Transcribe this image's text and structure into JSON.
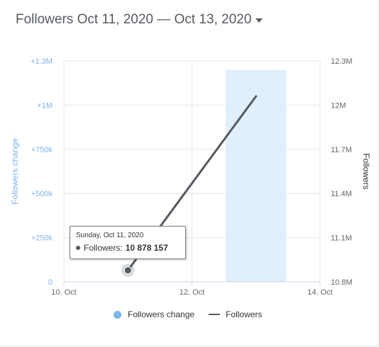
{
  "header": {
    "title": "Followers Oct 11, 2020 — Oct 13, 2020"
  },
  "chart_data": {
    "type": "line",
    "title": "Followers Oct 11, 2020 — Oct 13, 2020",
    "x_ticks": [
      "10. Oct",
      "12. Oct",
      "14. Oct"
    ],
    "x_values": [
      "2020-10-10",
      "2020-10-12",
      "2020-10-14"
    ],
    "y_left": {
      "label": "Followers change",
      "ticks": [
        "0",
        "+250k",
        "+500k",
        "+750k",
        "+1M",
        "+1.3M"
      ],
      "tick_values": [
        0,
        250000,
        500000,
        750000,
        1000000,
        1250000
      ],
      "range": [
        0,
        1250000
      ]
    },
    "y_right": {
      "label": "Followers",
      "ticks": [
        "10.8M",
        "11.1M",
        "11.4M",
        "11.7M",
        "12M",
        "12.3M"
      ],
      "tick_values": [
        10800000,
        11100000,
        11400000,
        11700000,
        12000000,
        12300000
      ],
      "range": [
        10800000,
        12300000
      ]
    },
    "series": [
      {
        "name": "Followers change",
        "type": "column",
        "color": "#7cb5ec",
        "points": [
          {
            "x": "2020-10-13",
            "y": 1200000
          }
        ]
      },
      {
        "name": "Followers",
        "type": "line",
        "color": "#555a60",
        "points": [
          {
            "x": "2020-10-11",
            "y": 10878157
          },
          {
            "x": "2020-10-13",
            "y": 12060000
          }
        ]
      }
    ],
    "grid": true,
    "legend": "bottom-center",
    "tooltip": {
      "date": "Sunday, Oct 11, 2020",
      "label": "Followers:",
      "value": "10 878 157"
    }
  }
}
